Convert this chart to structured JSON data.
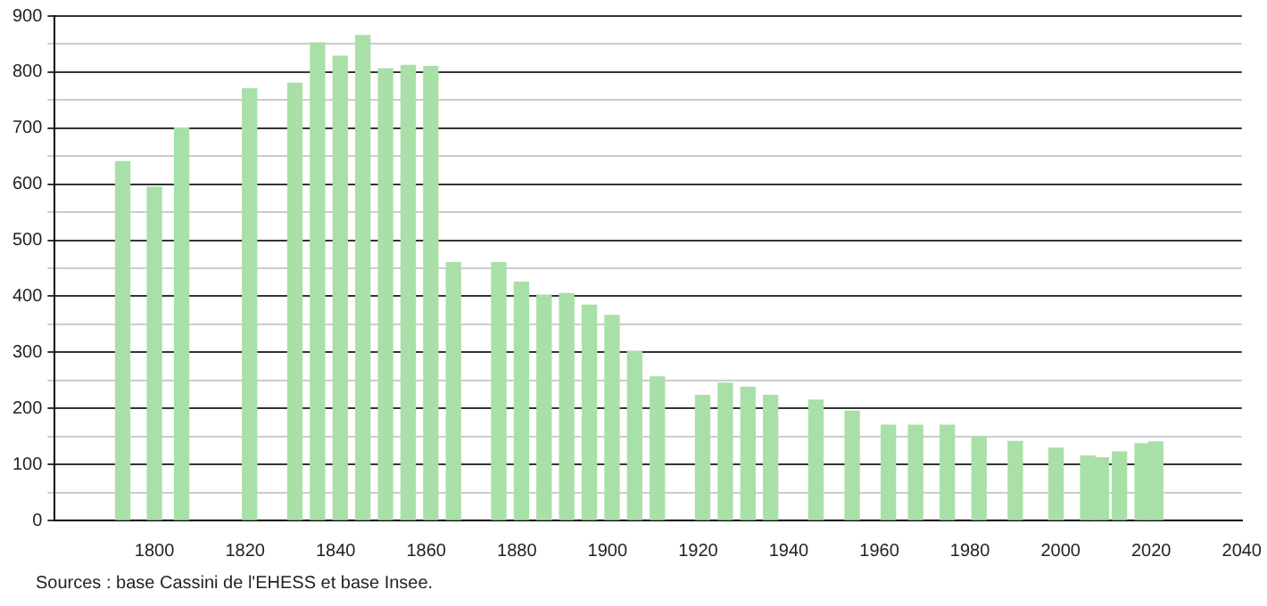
{
  "chart_data": {
    "type": "bar",
    "x": [
      1793,
      1800,
      1806,
      1821,
      1831,
      1836,
      1841,
      1846,
      1851,
      1856,
      1861,
      1866,
      1876,
      1881,
      1886,
      1891,
      1896,
      1901,
      1906,
      1911,
      1921,
      1926,
      1931,
      1936,
      1946,
      1954,
      1962,
      1968,
      1975,
      1982,
      1990,
      1999,
      2006,
      2009,
      2013,
      2018,
      2021
    ],
    "values": [
      640,
      595,
      700,
      770,
      780,
      852,
      828,
      865,
      806,
      812,
      810,
      460,
      460,
      425,
      402,
      405,
      384,
      366,
      302,
      256,
      223,
      245,
      238,
      223,
      215,
      195,
      170,
      170,
      170,
      150,
      141,
      129,
      115,
      112,
      122,
      137,
      140
    ],
    "color": "#a8e0a8",
    "xlim": [
      1778,
      2040
    ],
    "xticks": [
      1800,
      1820,
      1840,
      1860,
      1880,
      1900,
      1920,
      1940,
      1960,
      1980,
      2000,
      2020,
      2040
    ],
    "ylim": [
      0,
      900
    ],
    "yticks": [
      0,
      {
        "value": 50,
        "label": null
      },
      100,
      {
        "value": 150,
        "label": null
      },
      200,
      {
        "value": 250,
        "label": null
      },
      300,
      {
        "value": 350,
        "label": null
      },
      400,
      {
        "value": 450,
        "label": null
      },
      500,
      {
        "value": 550,
        "label": null
      },
      600,
      {
        "value": 650,
        "label": null
      },
      700,
      {
        "value": 750,
        "label": null
      },
      800,
      {
        "value": 850,
        "label": null
      },
      900
    ],
    "grid": "y",
    "annotations": [
      "Sources : base Cassini de l'EHESS et base Insee."
    ]
  }
}
